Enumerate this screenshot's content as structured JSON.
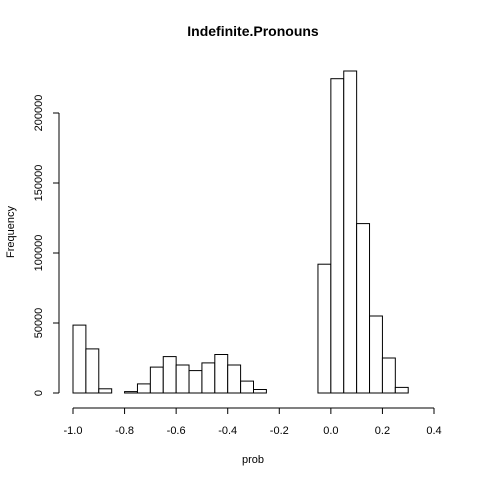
{
  "chart_data": {
    "type": "histogram",
    "title": "Indefinite.Pronouns",
    "xlabel": "prob",
    "ylabel": "Frequency",
    "bin_width": 0.05,
    "bins": [
      {
        "start": -1.0,
        "end": -0.95,
        "count": 48500
      },
      {
        "start": -0.95,
        "end": -0.9,
        "count": 31500
      },
      {
        "start": -0.9,
        "end": -0.85,
        "count": 3000
      },
      {
        "start": -0.85,
        "end": -0.8,
        "count": 0
      },
      {
        "start": -0.8,
        "end": -0.75,
        "count": 1000
      },
      {
        "start": -0.75,
        "end": -0.7,
        "count": 6500
      },
      {
        "start": -0.7,
        "end": -0.65,
        "count": 18500
      },
      {
        "start": -0.65,
        "end": -0.6,
        "count": 26000
      },
      {
        "start": -0.6,
        "end": -0.55,
        "count": 20000
      },
      {
        "start": -0.55,
        "end": -0.5,
        "count": 16000
      },
      {
        "start": -0.5,
        "end": -0.45,
        "count": 21500
      },
      {
        "start": -0.45,
        "end": -0.4,
        "count": 27500
      },
      {
        "start": -0.4,
        "end": -0.35,
        "count": 20000
      },
      {
        "start": -0.35,
        "end": -0.3,
        "count": 8500
      },
      {
        "start": -0.3,
        "end": -0.25,
        "count": 2500
      },
      {
        "start": -0.25,
        "end": -0.2,
        "count": 0
      },
      {
        "start": -0.2,
        "end": -0.15,
        "count": 0
      },
      {
        "start": -0.15,
        "end": -0.1,
        "count": 0
      },
      {
        "start": -0.1,
        "end": -0.05,
        "count": 0
      },
      {
        "start": -0.05,
        "end": 0.0,
        "count": 92000
      },
      {
        "start": 0.0,
        "end": 0.05,
        "count": 224500
      },
      {
        "start": 0.05,
        "end": 0.1,
        "count": 230000
      },
      {
        "start": 0.1,
        "end": 0.15,
        "count": 121000
      },
      {
        "start": 0.15,
        "end": 0.2,
        "count": 55000
      },
      {
        "start": 0.2,
        "end": 0.25,
        "count": 25000
      },
      {
        "start": 0.25,
        "end": 0.3,
        "count": 4000
      }
    ],
    "xlim": [
      -1.0,
      0.4
    ],
    "ylim": [
      0,
      230000
    ],
    "x_ticks": [
      {
        "value": -1.0,
        "label": "-1.0"
      },
      {
        "value": -0.8,
        "label": "-0.8"
      },
      {
        "value": -0.6,
        "label": "-0.6"
      },
      {
        "value": -0.4,
        "label": "-0.4"
      },
      {
        "value": -0.2,
        "label": "-0.2"
      },
      {
        "value": 0.0,
        "label": "0.0"
      },
      {
        "value": 0.2,
        "label": "0.2"
      },
      {
        "value": 0.4,
        "label": "0.4"
      }
    ],
    "y_ticks": [
      {
        "value": 0,
        "label": "0"
      },
      {
        "value": 50000,
        "label": "50000"
      },
      {
        "value": 100000,
        "label": "100000"
      },
      {
        "value": 150000,
        "label": "150000"
      },
      {
        "value": 200000,
        "label": "200000"
      }
    ],
    "grid": false,
    "bar_fill": "#ffffff",
    "bar_stroke": "#000000"
  }
}
